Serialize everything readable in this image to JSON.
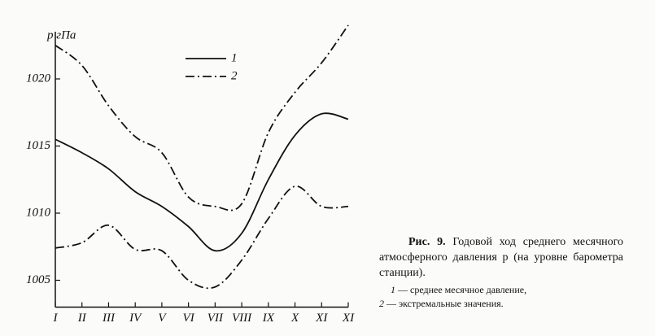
{
  "chart_data": {
    "type": "line",
    "y_label": "р гПа",
    "categories": [
      "I",
      "II",
      "III",
      "IV",
      "V",
      "VI",
      "VII",
      "VIII",
      "IX",
      "X",
      "XI",
      "XI"
    ],
    "series": [
      {
        "name": "1",
        "color": "#111111",
        "style": "solid",
        "values": [
          1015.5,
          1014.5,
          1013.3,
          1011.6,
          1010.5,
          1009,
          1007.2,
          1008.5,
          1012.5,
          1015.8,
          1017.4,
          1017
        ]
      },
      {
        "name": "2",
        "color": "#111111",
        "style": "dashdot",
        "values": [
          1022.5,
          1021,
          1018,
          1015.7,
          1014.5,
          1011.2,
          1010.5,
          1010.7,
          1016,
          1019,
          1021.2,
          1024
        ]
      },
      {
        "color": "#111111",
        "style": "dashdot",
        "values": [
          1007.4,
          1007.8,
          1009.1,
          1007.3,
          1007.2,
          1005,
          1004.5,
          1006.5,
          1009.6,
          1012,
          1010.5,
          1010.5
        ]
      }
    ],
    "ylim": [
      1003,
      1024
    ],
    "yticks": [
      1005,
      1010,
      1015,
      1020
    ],
    "grid": false
  },
  "caption": {
    "label": "Рис. 9.",
    "text": "Годовой ход среднего месячного атмосферного давления p (на уровне барометра станции).",
    "notes": [
      {
        "key": "1",
        "text": "— среднее месячное давление,"
      },
      {
        "key": "2",
        "text": "— экстремальные значения."
      }
    ]
  }
}
